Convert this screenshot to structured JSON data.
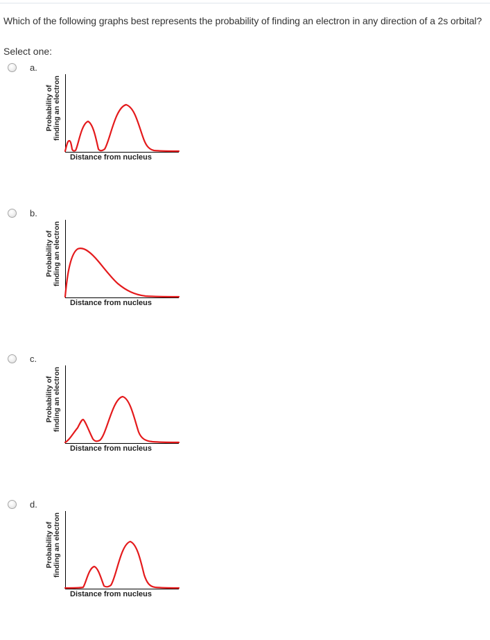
{
  "question": {
    "text": "Which of the following graphs best represents the probability of finding an electron in any direction of a 2s orbital?",
    "prompt": "Select one:"
  },
  "options": [
    {
      "letter": "a.",
      "graph": {
        "ylabel_line1": "Probability of",
        "ylabel_line2": "finding an electron",
        "xlabel": "Distance from nucleus"
      }
    },
    {
      "letter": "b.",
      "graph": {
        "ylabel_line1": "Probability of",
        "ylabel_line2": "finding an electron",
        "xlabel": "Distance from nucleus"
      }
    },
    {
      "letter": "c.",
      "graph": {
        "ylabel_line1": "Probability of",
        "ylabel_line2": "finding an electron",
        "xlabel": "Distance from nucleus"
      }
    },
    {
      "letter": "d.",
      "graph": {
        "ylabel_line1": "Probability of",
        "ylabel_line2": "finding an electron",
        "xlabel": "Distance from nucleus"
      }
    }
  ],
  "colors": {
    "curve": "#e41a1c",
    "axis": "#000000"
  },
  "chart_data": [
    {
      "type": "line",
      "peaks": 3,
      "xlabel": "Distance from nucleus",
      "ylabel": "Probability of finding an electron"
    },
    {
      "type": "line",
      "peaks": 1,
      "xlabel": "Distance from nucleus",
      "ylabel": "Probability of finding an electron"
    },
    {
      "type": "line",
      "peaks": 2,
      "xlabel": "Distance from nucleus",
      "ylabel": "Probability of finding an electron"
    },
    {
      "type": "line",
      "peaks": 2,
      "xlabel": "Distance from nucleus",
      "ylabel": "Probability of finding an electron"
    }
  ]
}
